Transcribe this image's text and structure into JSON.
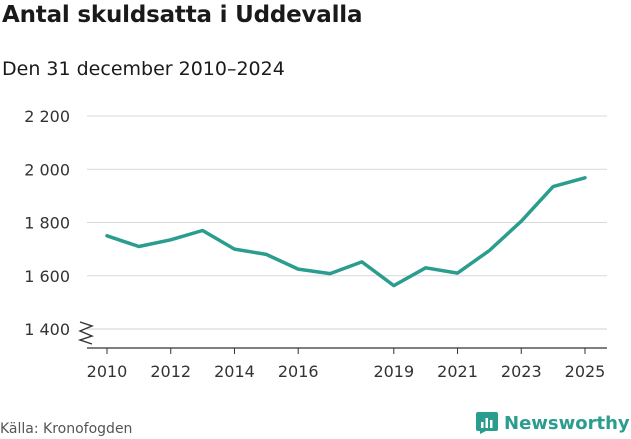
{
  "title": "Antal skuldsatta i Uddevalla",
  "subtitle": "Den 31 december 2010–2024",
  "source": "Källa: Kronofogden",
  "brand": {
    "name": "Newsworthy",
    "icon": "newsworthy-logo-icon",
    "color": "#2a9d8f"
  },
  "chart_data": {
    "type": "line",
    "title": "Antal skuldsatta i Uddevalla",
    "subtitle": "Den 31 december 2010–2024",
    "xlabel": "",
    "ylabel": "",
    "x": [
      2010,
      2011,
      2012,
      2013,
      2014,
      2015,
      2016,
      2017,
      2018,
      2019,
      2020,
      2021,
      2022,
      2023,
      2024,
      2025
    ],
    "series": [
      {
        "name": "Antal skuldsatta",
        "color": "#2a9d8f",
        "values": [
          1750,
          1710,
          1735,
          1770,
          1700,
          1680,
          1625,
          1608,
          1652,
          1563,
          1630,
          1610,
          1695,
          1805,
          1935,
          1968
        ]
      }
    ],
    "xticks": [
      2010,
      2012,
      2014,
      2016,
      2019,
      2021,
      2023,
      2025
    ],
    "xtick_labels": [
      "2010",
      "2012",
      "2014",
      "2016",
      "2019",
      "2021",
      "2023",
      "2025"
    ],
    "yticks": [
      1400,
      1600,
      1800,
      2000,
      2200
    ],
    "ytick_labels": [
      "1 400",
      "1 600",
      "1 800",
      "2 000",
      "2 200"
    ],
    "ylim": [
      1400,
      2200
    ],
    "xlim": [
      2010,
      2025
    ],
    "grid": true,
    "axis_break": true
  }
}
